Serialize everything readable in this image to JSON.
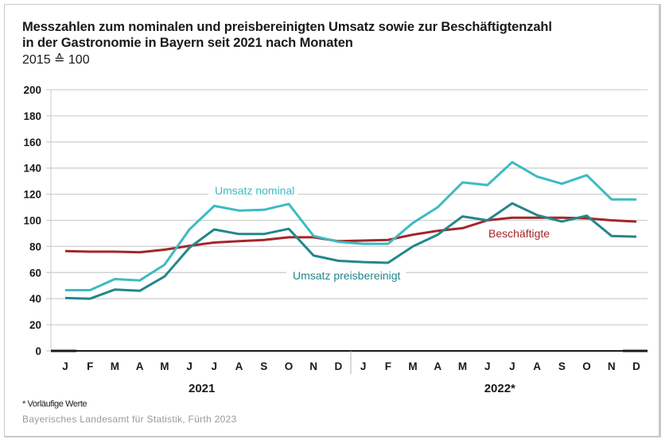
{
  "header": {
    "title_line1": "Messzahlen zum nominalen und preisbereinigten Umsatz sowie zur Beschäftigtenzahl",
    "title_line2": "in der Gastronomie in Bayern seit 2021 nach Monaten",
    "subtitle": "2015 ≙ 100"
  },
  "footer": {
    "footnote": "* Vorläufige Werte",
    "source": "Bayerisches Landesamt für Statistik, Fürth 2023"
  },
  "colors": {
    "nominal": "#3bbcc2",
    "real": "#23878a",
    "employment": "#a3262a",
    "grid": "#d0d0d0",
    "axis": "#1a1a1a"
  },
  "chart_data": {
    "type": "line",
    "title": "Messzahlen zum nominalen und preisbereinigten Umsatz sowie zur Beschäftigtenzahl in der Gastronomie in Bayern seit 2021 nach Monaten",
    "subtitle": "2015 ≙ 100",
    "xlabel": "",
    "ylabel": "",
    "ylim": [
      0,
      200
    ],
    "yticks": [
      0,
      20,
      40,
      60,
      80,
      100,
      120,
      140,
      160,
      180,
      200
    ],
    "grid": true,
    "legend": "inline labels",
    "categories": [
      "J",
      "F",
      "M",
      "A",
      "M",
      "J",
      "J",
      "A",
      "S",
      "O",
      "N",
      "D",
      "J",
      "F",
      "M",
      "A",
      "M",
      "J",
      "J",
      "A",
      "S",
      "O",
      "N",
      "D"
    ],
    "year_groups": [
      {
        "label": "2021",
        "start": 0,
        "end": 11
      },
      {
        "label": "2022*",
        "start": 12,
        "end": 23
      }
    ],
    "series": [
      {
        "name": "Umsatz nominal",
        "color": "#3bbcc2",
        "values": [
          46.5,
          46.5,
          55,
          54,
          66,
          93,
          111,
          107.5,
          108,
          112.5,
          88,
          83.5,
          82,
          82,
          98,
          110,
          129,
          127,
          144.5,
          133.5,
          128,
          134.5,
          116,
          116
        ]
      },
      {
        "name": "Umsatz preisbereinigt",
        "color": "#23878a",
        "values": [
          40.5,
          40,
          47,
          46,
          57,
          79,
          93,
          89.5,
          89.5,
          93.5,
          73,
          69,
          68,
          67.5,
          80,
          89,
          103,
          100,
          113,
          104,
          99,
          103.5,
          88,
          87.5
        ]
      },
      {
        "name": "Beschäftigte",
        "color": "#a3262a",
        "values": [
          76.5,
          76,
          76,
          75.5,
          77.5,
          80.5,
          83,
          84,
          85,
          87,
          87,
          84,
          84.5,
          85,
          89,
          92,
          94,
          100,
          102,
          102,
          102,
          101.5,
          100,
          99
        ]
      }
    ]
  }
}
